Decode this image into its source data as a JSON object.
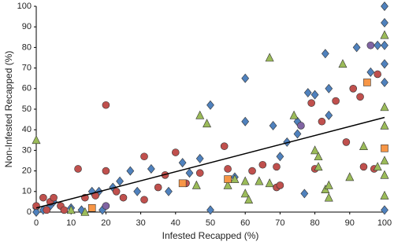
{
  "chart_data": {
    "type": "scatter",
    "x_label": "Infested Recapped (%)",
    "y_label": "Non-Infested Recapped (%)",
    "xlim": [
      0,
      100
    ],
    "ylim": [
      0,
      100
    ],
    "xticks": [
      0,
      10,
      20,
      30,
      40,
      50,
      60,
      70,
      80,
      90,
      100
    ],
    "yticks": [
      0,
      10,
      20,
      30,
      40,
      50,
      60,
      70,
      80,
      90,
      100
    ],
    "grid": false,
    "series": [
      {
        "marker": "diamond",
        "color": "#4f81bd",
        "x": [
          100,
          100,
          100,
          98,
          100,
          100,
          100,
          92,
          83,
          96,
          84,
          84,
          80,
          78,
          75,
          75,
          68,
          72,
          70,
          60,
          60,
          50,
          50,
          47,
          44,
          42,
          38,
          33,
          29,
          27,
          24,
          22,
          18,
          16,
          13,
          19,
          10,
          5,
          4,
          2,
          0,
          0,
          57,
          77
        ],
        "values": [
          100,
          92,
          81,
          81,
          72,
          63,
          1,
          80,
          77,
          68,
          60,
          47,
          57,
          58,
          44,
          38,
          42,
          34,
          27,
          44,
          65,
          52,
          1,
          26,
          19,
          24,
          10,
          21,
          10,
          20,
          15,
          12,
          10,
          10,
          1,
          1,
          2,
          5,
          3,
          1,
          2,
          0,
          17,
          9
        ]
      },
      {
        "marker": "circle",
        "color": "#c0504d",
        "x": [
          0,
          3,
          2,
          4,
          5,
          7,
          8,
          12,
          14,
          17,
          20,
          20,
          23,
          25,
          31,
          31,
          35,
          37,
          40,
          43,
          47,
          54,
          55,
          62,
          65,
          69,
          70,
          69,
          79,
          80,
          82,
          86,
          91,
          93,
          94,
          98,
          97,
          89
        ],
        "values": [
          3,
          1,
          7,
          5,
          7,
          3,
          1,
          21,
          7,
          8,
          52,
          20,
          10,
          7,
          27,
          6,
          12,
          18,
          29,
          14,
          19,
          32,
          21,
          20,
          23,
          12,
          13,
          22,
          53,
          21,
          44,
          54,
          60,
          56,
          22,
          67,
          21,
          34
        ]
      },
      {
        "marker": "triangle",
        "color": "#9bbb59",
        "x": [
          0,
          10,
          14,
          47,
          49,
          46,
          55,
          57,
          60,
          61,
          64,
          67,
          67,
          74,
          80,
          81,
          81,
          83,
          84,
          84,
          88,
          90,
          94,
          98,
          100,
          100,
          100,
          100,
          100,
          100,
          60
        ],
        "values": [
          35,
          1,
          0,
          47,
          43,
          13,
          13,
          16,
          9,
          6,
          15,
          75,
          14,
          47,
          30,
          22,
          27,
          11,
          13,
          7,
          72,
          17,
          32,
          22,
          86,
          42,
          25,
          18,
          51,
          8,
          15
        ]
      },
      {
        "marker": "square",
        "color": "#f79646",
        "x": [
          16,
          42,
          55,
          95,
          100
        ],
        "values": [
          2,
          14,
          16,
          63,
          31
        ]
      },
      {
        "marker": "circle",
        "color": "#8064a2",
        "x": [
          20,
          76,
          96
        ],
        "values": [
          3,
          42,
          81
        ]
      }
    ],
    "trendline": {
      "x": [
        0,
        100
      ],
      "values": [
        2,
        46
      ],
      "color": "#000000"
    }
  }
}
